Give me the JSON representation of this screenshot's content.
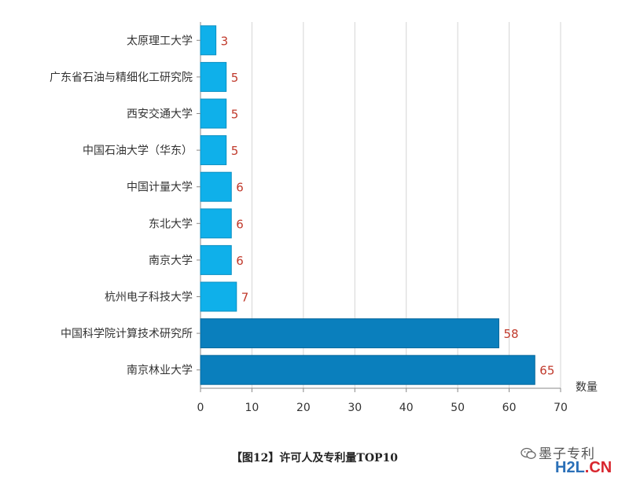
{
  "chart_data": {
    "type": "bar",
    "orientation": "horizontal",
    "categories": [
      "太原理工大学",
      "广东省石油与精细化工研究院",
      "西安交通大学",
      "中国石油大学（华东）",
      "中国计量大学",
      "东北大学",
      "南京大学",
      "杭州电子科技大学",
      "中国科学院计算技术研究所",
      "南京林业大学"
    ],
    "values": [
      3,
      5,
      5,
      5,
      6,
      6,
      6,
      7,
      58,
      65
    ],
    "xlabel": "数量",
    "xlim": [
      0,
      70
    ],
    "xticks": [
      0,
      10,
      20,
      30,
      40,
      50,
      60,
      70
    ],
    "grid": true,
    "value_labels": true,
    "colors": {
      "bar": "#0fb0ea",
      "bar_edge": "#0b8fc2",
      "bar_highlight": "#0a7fbd",
      "bar_highlight_edge": "#06689c",
      "value_label": "#c0392b",
      "grid": "#d5d5d5"
    }
  },
  "caption": "【图12】许可人及专利量TOP10",
  "watermark": {
    "icon": "wechat-icon",
    "text": "墨子专利",
    "site_prefix": "H2L",
    "site_suffix": ".CN"
  }
}
